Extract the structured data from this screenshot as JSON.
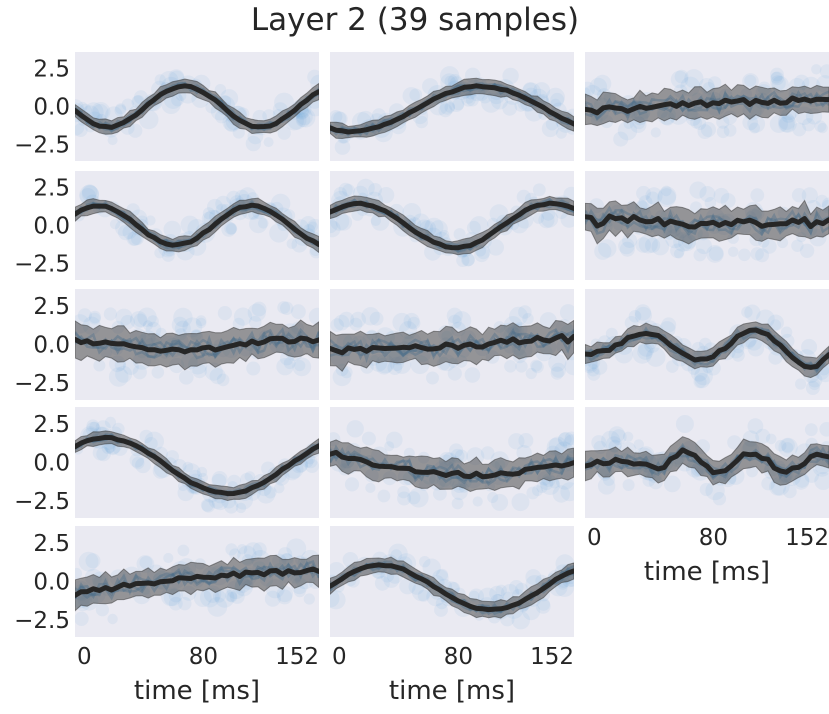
{
  "chart_data": {
    "type": "line",
    "title": "Layer 2 (39 samples)",
    "xlabel": "time [ms]",
    "ylabel": "",
    "x_tick_labels": [
      "0",
      "80",
      "152"
    ],
    "y_tick_labels": [
      "2.5",
      "0.0",
      "−2.5"
    ],
    "y_ticks": [
      2.5,
      0.0,
      -2.5
    ],
    "x_ticks": [
      0,
      80,
      152
    ],
    "xlim": [
      0,
      152
    ],
    "ylim": [
      -3.6,
      3.6
    ],
    "grid": false,
    "mean_color": "#262626",
    "band_color": "#4d4d4d",
    "sample_color": "#3b8fd0",
    "panel_bg": "#eaeaf2",
    "panels": [
      {
        "id": "r1c1",
        "row": 1,
        "col": 1,
        "wave": "sine",
        "a": 1.35,
        "p": 16,
        "ph": 4,
        "band": 0.45,
        "noise": 0.05
      },
      {
        "id": "r1c2",
        "row": 1,
        "col": 2,
        "wave": "sine",
        "a": 1.5,
        "p": 40,
        "ph": -36,
        "off": -0.15,
        "band": 0.45,
        "noise": 0.05
      },
      {
        "id": "r1c3",
        "row": 1,
        "col": 3,
        "wave": "trend",
        "y0": -0.3,
        "y1": 0.6,
        "band": 0.9,
        "noise": 0.2
      },
      {
        "id": "r2c1",
        "row": 2,
        "col": 1,
        "wave": "sine",
        "a": 1.3,
        "p": 58,
        "ph": 27,
        "band": 0.45,
        "noise": 0.05
      },
      {
        "id": "r2c2",
        "row": 2,
        "col": 2,
        "wave": "sine",
        "a": 1.45,
        "p": 6,
        "ph": -36,
        "band": 0.45,
        "noise": 0.05
      },
      {
        "id": "r2c3",
        "row": 2,
        "col": 3,
        "wave": "trend",
        "y0": 0.3,
        "y1": 0.1,
        "band": 1.0,
        "noise": 0.35
      },
      {
        "id": "r3c1",
        "row": 3,
        "col": 1,
        "wave": "trend",
        "y0": 0.2,
        "y1": 0.2,
        "bump": -0.6,
        "band": 1.0,
        "noise": 0.15
      },
      {
        "id": "r3c2",
        "row": 3,
        "col": 2,
        "wave": "trend",
        "y0": -0.5,
        "y1": 0.4,
        "band": 1.0,
        "noise": 0.25
      },
      {
        "id": "r3c3",
        "row": 3,
        "col": 3,
        "wave": "complex3",
        "band": 0.6,
        "noise": 0.1
      },
      {
        "id": "r4c1",
        "row": 4,
        "col": 1,
        "wave": "sine",
        "a": 1.8,
        "p": -18,
        "ph": 38,
        "off": -0.2,
        "band": 0.4,
        "noise": 0.05
      },
      {
        "id": "r4c2",
        "row": 4,
        "col": 2,
        "wave": "curve",
        "band": 0.9,
        "noise": 0.15
      },
      {
        "id": "r4c3",
        "row": 4,
        "col": 3,
        "wave": "complex4",
        "band": 0.8,
        "noise": 0.15
      },
      {
        "id": "r5c1",
        "row": 5,
        "col": 1,
        "wave": "trend",
        "y0": -0.8,
        "y1": 0.7,
        "bump": 0.3,
        "band": 0.9,
        "noise": 0.15
      },
      {
        "id": "r5c2",
        "row": 5,
        "col": 2,
        "wave": "sine",
        "a": 1.45,
        "p": 20,
        "ph": -30,
        "off": -0.4,
        "band": 0.5,
        "noise": 0.05
      }
    ]
  }
}
